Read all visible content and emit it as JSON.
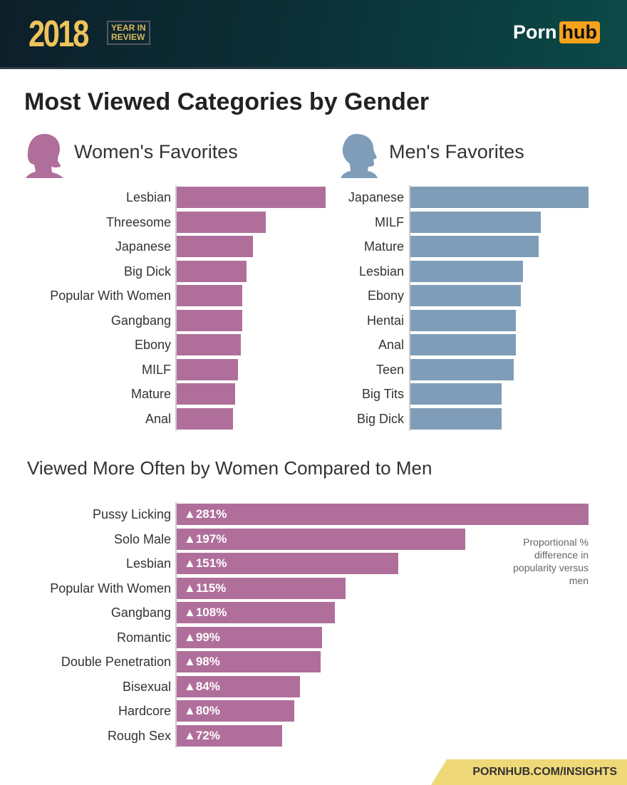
{
  "header": {
    "year": "2018",
    "badge_line1": "YEAR IN",
    "badge_line2": "REVIEW",
    "logo_left": "Porn",
    "logo_right": "hub"
  },
  "footer": {
    "url": "PORNHUB.COM/INSIGHTS"
  },
  "colors": {
    "women": "#b06f9b",
    "men": "#7f9db8",
    "accent": "#f7a21b"
  },
  "chart_data": [
    {
      "type": "bar",
      "orientation": "horizontal",
      "title": "Most Viewed Categories by Gender",
      "subtitle": "Women's Favorites",
      "icon": "woman-silhouette-icon",
      "categories": [
        "Lesbian",
        "Threesome",
        "Japanese",
        "Big Dick",
        "Popular With Women",
        "Gangbang",
        "Ebony",
        "MILF",
        "Mature",
        "Anal"
      ],
      "values": [
        100,
        60,
        51,
        47,
        44,
        44,
        43,
        41,
        39,
        38
      ],
      "color": "#b06f9b"
    },
    {
      "type": "bar",
      "orientation": "horizontal",
      "subtitle": "Men's Favorites",
      "icon": "man-silhouette-icon",
      "categories": [
        "Japanese",
        "MILF",
        "Mature",
        "Lesbian",
        "Ebony",
        "Hentai",
        "Anal",
        "Teen",
        "Big Tits",
        "Big Dick"
      ],
      "values": [
        100,
        73,
        72,
        63,
        62,
        59,
        59,
        58,
        51,
        51
      ],
      "color": "#7f9db8"
    },
    {
      "type": "bar",
      "orientation": "horizontal",
      "subtitle": "Viewed More Often by Women Compared to Men",
      "categories": [
        "Pussy Licking",
        "Solo Male",
        "Lesbian",
        "Popular With Women",
        "Gangbang",
        "Romantic",
        "Double Penetration",
        "Bisexual",
        "Hardcore",
        "Rough Sex"
      ],
      "values": [
        281,
        197,
        151,
        115,
        108,
        99,
        98,
        84,
        80,
        72
      ],
      "labels": [
        "▲281%",
        "▲197%",
        "▲151%",
        "▲115%",
        "▲108%",
        "▲99%",
        "▲98%",
        "▲84%",
        "▲80%",
        "▲72%"
      ],
      "annotation": "Proportional % difference in popularity versus men",
      "color": "#b06f9b"
    }
  ]
}
